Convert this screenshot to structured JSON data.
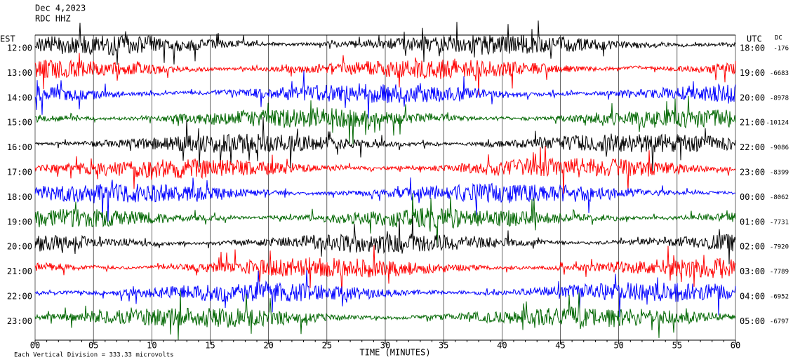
{
  "header": {
    "date": "Dec 4,2023",
    "station": "RDC HHZ"
  },
  "left_zone": "EST",
  "right_zone": "UTC",
  "offset_heading": "DC",
  "rows": [
    {
      "est": "12:00",
      "utc": "18:00",
      "dc": -176
    },
    {
      "est": "13:00",
      "utc": "19:00",
      "dc": -6683
    },
    {
      "est": "14:00",
      "utc": "20:00",
      "dc": -8978
    },
    {
      "est": "15:00",
      "utc": "21:00",
      "dc": -10124
    },
    {
      "est": "16:00",
      "utc": "22:00",
      "dc": -9086
    },
    {
      "est": "17:00",
      "utc": "23:00",
      "dc": -8399
    },
    {
      "est": "18:00",
      "utc": "00:00",
      "dc": -8062
    },
    {
      "est": "19:00",
      "utc": "01:00",
      "dc": -7731
    },
    {
      "est": "20:00",
      "utc": "02:00",
      "dc": -7920
    },
    {
      "est": "21:00",
      "utc": "03:00",
      "dc": -7789
    },
    {
      "est": "22:00",
      "utc": "04:00",
      "dc": -6952
    },
    {
      "est": "23:00",
      "utc": "05:00",
      "dc": -6797
    }
  ],
  "trace_colors": [
    "#000000",
    "#ff0000",
    "#0000ff",
    "#006600"
  ],
  "x_ticks": [
    "00",
    "05",
    "10",
    "15",
    "20",
    "25",
    "30",
    "35",
    "40",
    "45",
    "50",
    "55",
    "60"
  ],
  "x_label": "TIME (MINUTES)",
  "footer": "Each Vertical Division =  333.33 microvolts"
}
